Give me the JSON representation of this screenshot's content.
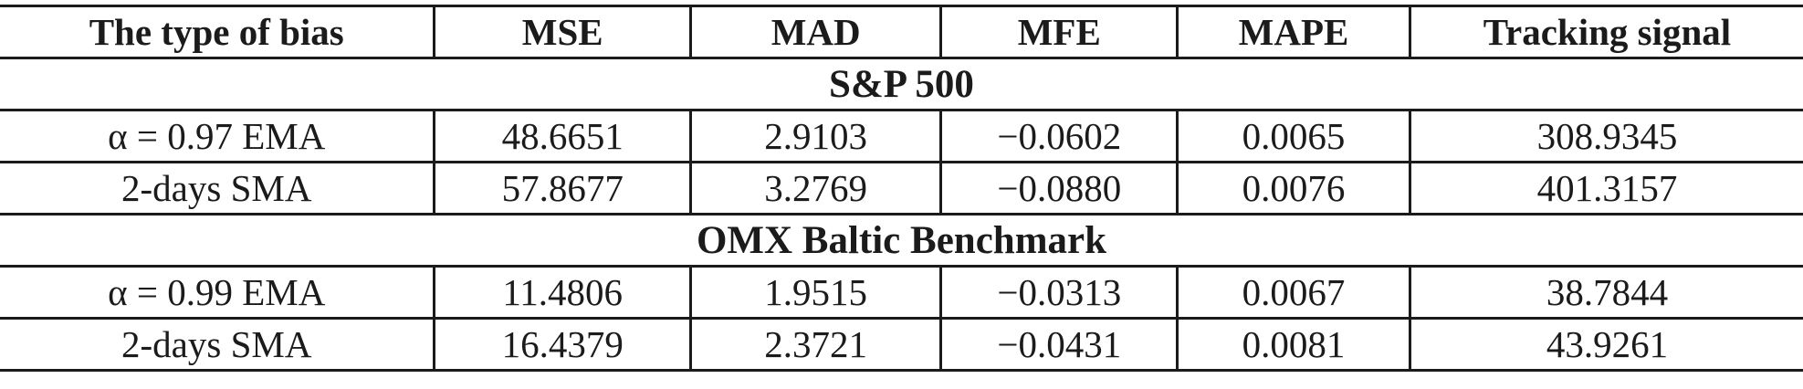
{
  "colors": {
    "text": "#1b1b1b",
    "border": "#1b1b1b",
    "background": "#ffffff"
  },
  "table": {
    "columns": [
      "The type of bias",
      "MSE",
      "MAD",
      "MFE",
      "MAPE",
      "Tracking signal"
    ],
    "sections": [
      {
        "title": "S&P 500",
        "rows": [
          {
            "bias": "α = 0.97 EMA",
            "mse": "48.6651",
            "mad": "2.9103",
            "mfe": "−0.0602",
            "mape": "0.0065",
            "tracking": "308.9345"
          },
          {
            "bias": "2-days SMA",
            "mse": "57.8677",
            "mad": "3.2769",
            "mfe": "−0.0880",
            "mape": "0.0076",
            "tracking": "401.3157"
          }
        ]
      },
      {
        "title": "OMX Baltic Benchmark",
        "rows": [
          {
            "bias": "α = 0.99 EMA",
            "mse": "11.4806",
            "mad": "1.9515",
            "mfe": "−0.0313",
            "mape": "0.0067",
            "tracking": "38.7844"
          },
          {
            "bias": "2-days SMA",
            "mse": "16.4379",
            "mad": "2.3721",
            "mfe": "−0.0431",
            "mape": "0.0081",
            "tracking": "43.9261"
          }
        ]
      }
    ]
  }
}
